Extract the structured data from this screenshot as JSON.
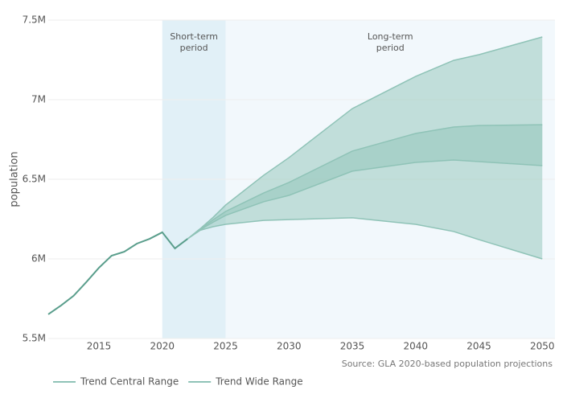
{
  "chart_data": {
    "type": "line",
    "y_label": "population",
    "source": "Source: GLA 2020-based population projections",
    "xlim": [
      2011,
      2051
    ],
    "xticks": [
      2015,
      2020,
      2025,
      2030,
      2035,
      2040,
      2045,
      2050
    ],
    "ylim": [
      5500000,
      7500000
    ],
    "yticks": [
      {
        "value": 5500000,
        "label": "5.5M"
      },
      {
        "value": 6000000,
        "label": "6M"
      },
      {
        "value": 6500000,
        "label": "6.5M"
      },
      {
        "value": 7000000,
        "label": "7M"
      },
      {
        "value": 7500000,
        "label": "7.5M"
      }
    ],
    "grid": true,
    "periods": [
      {
        "lines": [
          "Short-term",
          "period"
        ],
        "start": 2020,
        "end": 2025,
        "color": "#e1f0f7"
      },
      {
        "lines": [
          "Long-term",
          "period"
        ],
        "start": 2025,
        "end": 2051,
        "color": "#f2f8fc"
      }
    ],
    "history": {
      "color": "#5a9e8c",
      "x": [
        2011,
        2012,
        2013,
        2014,
        2015,
        2016,
        2017,
        2018,
        2019,
        2020,
        2021,
        2022
      ],
      "values": [
        5652000,
        5707000,
        5768000,
        5854000,
        5944000,
        6020000,
        6045000,
        6096000,
        6126000,
        6167000,
        6066000,
        6126000
      ]
    },
    "bands": [
      {
        "name": "Trend Central Range",
        "color": "#8fc3b7",
        "x": [
          2022,
          2023,
          2024,
          2025,
          2028,
          2030,
          2035,
          2040,
          2043,
          2045,
          2050
        ],
        "upper": [
          6126000,
          6185000,
          6245000,
          6298000,
          6414000,
          6480000,
          6677000,
          6788000,
          6828000,
          6838000,
          6843000
        ],
        "lower": [
          6126000,
          6183000,
          6230000,
          6273000,
          6359000,
          6399000,
          6551000,
          6606000,
          6621000,
          6611000,
          6586000
        ]
      },
      {
        "name": "Trend Wide Range",
        "color": "#8fc3b7",
        "x": [
          2022,
          2023,
          2024,
          2025,
          2028,
          2030,
          2035,
          2040,
          2043,
          2045,
          2050
        ],
        "upper": [
          6126000,
          6190000,
          6260000,
          6338000,
          6525000,
          6636000,
          6944000,
          7146000,
          7247000,
          7283000,
          7394000
        ],
        "lower": [
          6126000,
          6180000,
          6202000,
          6217000,
          6242000,
          6247000,
          6258000,
          6217000,
          6172000,
          6121000,
          6000000
        ]
      }
    ]
  }
}
